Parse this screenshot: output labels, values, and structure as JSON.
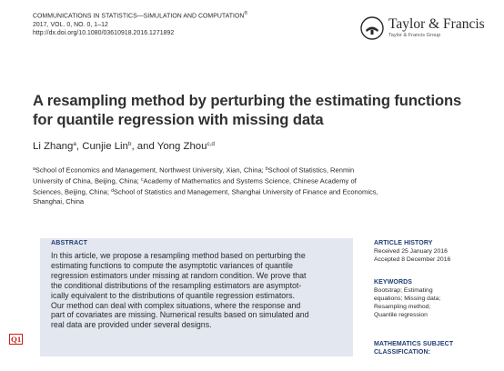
{
  "journal": {
    "name": "COMMUNICATIONS IN STATISTICS—SIMULATION AND COMPUTATION",
    "registered_mark": "®",
    "volume_line": "2017, VOL. 0, NO. 0, 1–12",
    "doi": "http://dx.doi.org/10.1080/03610918.2016.1271892"
  },
  "publisher": {
    "name": "Taylor & Francis",
    "subtitle": "Taylor & Francis Group"
  },
  "paper": {
    "title_lines": [
      "A resampling method by perturbing the estimating functions",
      "for quantile regression with missing data"
    ],
    "authors": [
      {
        "name": "Li Zhang",
        "mark": "a",
        "sep": ", "
      },
      {
        "name": "Cunjie Lin",
        "mark": "b",
        "sep": ", and "
      },
      {
        "name": "Yong Zhou",
        "mark": "c,d",
        "sep": ""
      }
    ],
    "affiliation_lines": [
      {
        "parts": [
          {
            "sup": "a"
          },
          {
            "text": "School of Economics and Management, Northwest University, Xian, China; "
          },
          {
            "sup": "b"
          },
          {
            "text": "School of Statistics, Renmin"
          }
        ]
      },
      {
        "parts": [
          {
            "text": "University of China, Beijing, China; "
          },
          {
            "sup": "c"
          },
          {
            "text": "Academy of Mathematics and Systems Science, Chinese Academy of"
          }
        ]
      },
      {
        "parts": [
          {
            "text": "Sciences, Beijing, China; "
          },
          {
            "sup": "d"
          },
          {
            "text": "School of Statistics and Management, Shanghai University of Finance and Economics,"
          }
        ]
      },
      {
        "parts": [
          {
            "text": "Shanghai, China"
          }
        ]
      }
    ]
  },
  "abstract": {
    "heading": "ABSTRACT",
    "lines": [
      "In this article, we propose a resampling method based on perturbing the",
      "estimating functions to compute the asymptotic variances of quantile",
      "regression estimators under missing at random condition. We prove that",
      "the conditional distributions of the resampling estimators are asymptot-",
      "ically equivalent to the distributions of quantile regression estimators.",
      "Our method can deal with complex situations, where the response and",
      "part of covariates are missing. Numerical results based on simulated and",
      "real data are provided under several designs."
    ],
    "query_marker": "Q1"
  },
  "article_history": {
    "heading": "ARTICLE HISTORY",
    "lines": [
      "Received 25 January 2016",
      "Accepted 8 December 2016"
    ]
  },
  "keywords": {
    "heading": "KEYWORDS",
    "lines": [
      "Bootstrap; Estimating",
      "equations; Missing data;",
      "Resampling method;",
      "Quantile regression"
    ]
  },
  "msc": {
    "heading_lines": [
      "MATHEMATICS SUBJECT",
      "CLASSIFICATION:"
    ]
  },
  "colors": {
    "heading_blue": "#1f3d73",
    "abstract_bg": "#e3e7ef",
    "query_red": "#c8201a"
  }
}
